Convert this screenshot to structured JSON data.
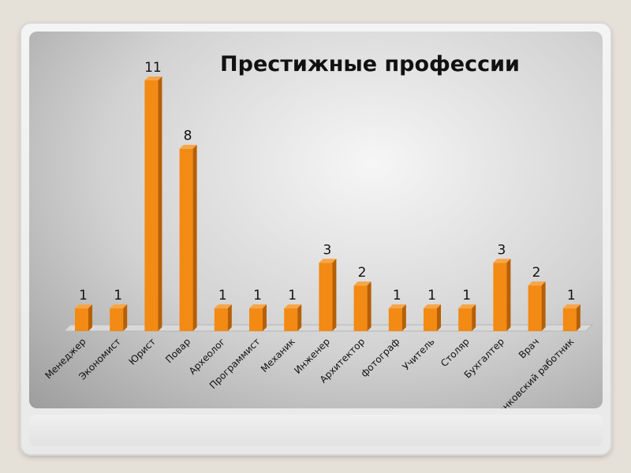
{
  "chart_data": {
    "type": "bar",
    "title": "Престижные профессии",
    "xlabel": "",
    "ylabel": "",
    "categories": [
      "Менеджер",
      "Экономист",
      "Юрист",
      "Повар",
      "Археолог",
      "Программист",
      "Механик",
      "Инженер",
      "Архитектор",
      "фотограф",
      "Учитель",
      "Столяр",
      "Бухгалтер",
      "Врач",
      "Банковский работник"
    ],
    "values": [
      1,
      1,
      11,
      8,
      1,
      1,
      1,
      3,
      2,
      1,
      1,
      1,
      3,
      2,
      1
    ],
    "ylim": [
      0,
      11
    ],
    "grid": false,
    "legend": "none",
    "bar_color": "#f28a14",
    "bar_top_color": "#f7a547",
    "bar_side_color": "#b65f05"
  }
}
